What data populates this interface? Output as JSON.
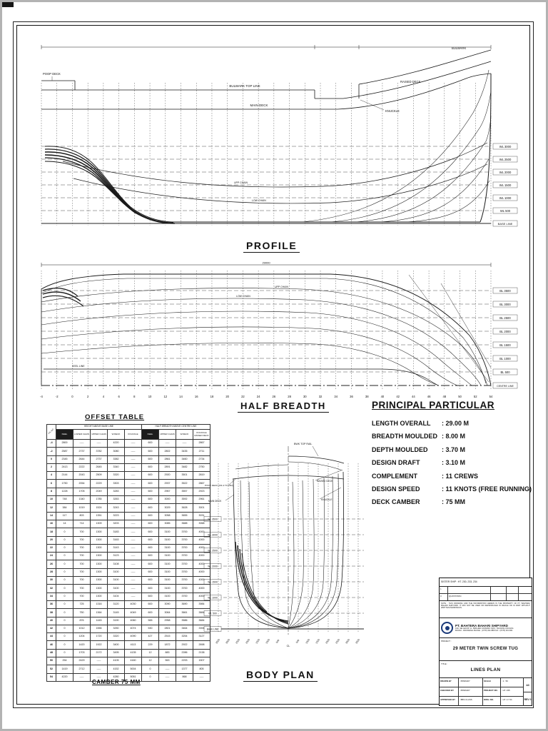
{
  "views": {
    "profile": {
      "title": "PROFILE",
      "labels": {
        "bulwark_top_line": "BULWARK TOP LINE",
        "main_deck": "MAIN DECK",
        "poop_deck": "POOP DECK",
        "raised_deck": "RAISED DECK",
        "bulwark": "BULWARK",
        "knuckle": "KNUCKLE",
        "upp_chain": "UPP CHAIN",
        "low_chain": "LOW CHAIN",
        "base_line": "BASE LINE"
      },
      "waterline_labels": [
        "WL 3000",
        "WL 2500",
        "WL 2000",
        "WL 1500",
        "WL 1000",
        "WL 500"
      ]
    },
    "half_breadth": {
      "title": "HALF BREADTH",
      "labels": {
        "upp_chain": "UPP CHAIN",
        "low_chain": "LOW CHAIN",
        "keel_line": "KEEL LINE",
        "centre_line": "CENTRE LINE",
        "length_dim": "29000"
      },
      "buttock_labels": [
        "BL 3500",
        "BL 3000",
        "BL 2500",
        "BL 2000",
        "BL 1500",
        "BL 1000",
        "BL 500"
      ],
      "station_numbers": [
        "-4",
        "-2",
        "0",
        "2",
        "4",
        "6",
        "8",
        "10",
        "12",
        "14",
        "16",
        "18",
        "20",
        "22",
        "24",
        "26",
        "28",
        "30",
        "32",
        "34",
        "36",
        "38",
        "40",
        "42",
        "44",
        "46",
        "48",
        "50",
        "52",
        "54"
      ]
    },
    "body_plan": {
      "title": "BODY PLAN",
      "labels": {
        "bwk_top_rail": "BWK TOP RAIL",
        "poop_deck": "POOP DECK (FR-4 TO FR2)",
        "main_deck": "MAIN DECK",
        "raised_deck": "RAISED DECK",
        "knuckle": "KNUCKLE",
        "base_line": "BASE LINE",
        "centre_line": "CL"
      },
      "waterline_labels": [
        "WL 3500",
        "WL 3000",
        "WL 2500",
        "WL 2000",
        "WL 1500",
        "WL 1000",
        "WL 500"
      ],
      "buttock_offsets": [
        "3500",
        "3000",
        "2500",
        "2000",
        "1500",
        "1000",
        "500"
      ]
    }
  },
  "principal_particular": {
    "title": "PRINCIPAL PARTICULAR",
    "items": [
      {
        "label": "LENGTH OVERALL",
        "value": ": 29.00 M"
      },
      {
        "label": "BREADTH MOULDED",
        "value": ": 8.00 M"
      },
      {
        "label": "DEPTH MOULDED",
        "value": ": 3.70 M"
      },
      {
        "label": "DESIGN DRAFT",
        "value": ": 3.10 M"
      },
      {
        "label": "COMPLEMENT",
        "value": ": 11 CREWS"
      },
      {
        "label": "DESIGN SPEED",
        "value": ": 11 KNOTS (FREE RUNNING)"
      },
      {
        "label": "DECK CAMBER",
        "value": ": 75 MM"
      }
    ]
  },
  "offset_table": {
    "title": "OFFSET TABLE",
    "footer": "CAMBER 75 MM",
    "corner_header": "FR. NO",
    "group_headers": [
      "HEIGHT ABOVE BASE LINE",
      "HALF BREADTH ABOVE CENTRE LINE"
    ],
    "col_headers_height": [
      "KEEL",
      "LOWER CHAIN",
      "UPPER CHAIN",
      "W.DECK",
      "KNUCKLE"
    ],
    "col_headers_breadth": [
      "KEEL",
      "UPPER CHAIN",
      "W.DECK",
      "KNUCKLE RAISED DECK"
    ],
    "rows": [
      [
        "-4",
        "2800",
        "-----",
        "-----",
        "4220",
        "-----",
        "600",
        "-----",
        "-----",
        "2867"
      ],
      [
        "-2",
        "2587",
        "2737",
        "3782",
        "3080",
        "-----",
        "600",
        "2802",
        "3435",
        "2711"
      ],
      [
        "0",
        "2345",
        "2644",
        "2737",
        "3382",
        "-----",
        "600",
        "2861",
        "3460",
        "2734"
      ],
      [
        "2",
        "2413",
        "2222",
        "2645",
        "3340",
        "-----",
        "600",
        "2891",
        "3482",
        "2750"
      ],
      [
        "4",
        "2144",
        "2043",
        "2509",
        "3320",
        "-----",
        "600",
        "2920",
        "3501",
        "2819"
      ],
      [
        "6",
        "1750",
        "2054",
        "2229",
        "3303",
        "-----",
        "600",
        "2937",
        "3522",
        "2867"
      ],
      [
        "8",
        "1228",
        "1705",
        "2049",
        "3283",
        "-----",
        "600",
        "2967",
        "3557",
        "2923"
      ],
      [
        "10",
        "748",
        "1340",
        "1785",
        "3263",
        "-----",
        "600",
        "3000",
        "3592",
        "2961"
      ],
      [
        "12",
        "384",
        "1019",
        "1524",
        "3243",
        "-----",
        "600",
        "3029",
        "3628",
        "3001"
      ],
      [
        "14",
        "117",
        "803",
        "1351",
        "3223",
        "-----",
        "600",
        "3058",
        "3655",
        "3031"
      ],
      [
        "16",
        "14",
        "714",
        "1309",
        "3203",
        "-----",
        "600",
        "3085",
        "3688",
        "3068"
      ],
      [
        "18",
        "0",
        "700",
        "1300",
        "3183",
        "-----",
        "600",
        "3100",
        "3700",
        "4000"
      ],
      [
        "20",
        "0",
        "700",
        "1300",
        "3163",
        "-----",
        "600",
        "3100",
        "3700",
        "4000"
      ],
      [
        "22",
        "0",
        "700",
        "1300",
        "3143",
        "-----",
        "600",
        "3100",
        "3700",
        "4000"
      ],
      [
        "24",
        "0",
        "700",
        "1300",
        "3123",
        "-----",
        "600",
        "3100",
        "3700",
        "4000"
      ],
      [
        "26",
        "0",
        "700",
        "1300",
        "3108",
        "-----",
        "600",
        "3100",
        "3700",
        "4000"
      ],
      [
        "28",
        "0",
        "700",
        "1300",
        "3100",
        "-----",
        "600",
        "3100",
        "3700",
        "4000"
      ],
      [
        "30",
        "0",
        "700",
        "1300",
        "3100",
        "-----",
        "600",
        "3100",
        "3700",
        "4000"
      ],
      [
        "32",
        "0",
        "700",
        "1300",
        "3100",
        "-----",
        "600",
        "3100",
        "3700",
        "4000"
      ],
      [
        "34",
        "0",
        "700",
        "1300",
        "3104",
        "-----",
        "600",
        "3100",
        "3700",
        "4000"
      ],
      [
        "36",
        "0",
        "725",
        "1316",
        "3120",
        "4030",
        "600",
        "3090",
        "3690",
        "3984"
      ],
      [
        "38",
        "0",
        "750",
        "1364",
        "3145",
        "4049",
        "600",
        "3064",
        "3661",
        "3884"
      ],
      [
        "40",
        "0",
        "876",
        "1445",
        "3190",
        "4060",
        "565",
        "2958",
        "3586",
        "3684"
      ],
      [
        "42",
        "0",
        "1012",
        "1556",
        "3250",
        "4074",
        "530",
        "2801",
        "3464",
        "3394"
      ],
      [
        "44",
        "0",
        "1204",
        "1720",
        "3320",
        "4090",
        "427",
        "2515",
        "3254",
        "3127"
      ],
      [
        "46",
        "0",
        "1420",
        "1922",
        "3400",
        "4113",
        "229",
        "1872",
        "2922",
        "2698"
      ],
      [
        "48",
        "0",
        "1703",
        "2172",
        "3495",
        "4135",
        "12",
        "883",
        "2286",
        "2138"
      ],
      [
        "50",
        "254",
        "2429",
        "-----",
        "4105",
        "4160",
        "12",
        "563",
        "2293",
        "1507"
      ],
      [
        "52",
        "1419",
        "2712",
        "-----",
        "4152",
        "5004",
        "0",
        "-----",
        "1377",
        "805"
      ],
      [
        "54",
        "4220",
        "-----",
        "-----",
        "4280",
        "5051",
        "0",
        "-----",
        "868",
        "-----"
      ]
    ]
  },
  "title_block": {
    "sister_ship": "SISTER SHIP : HT. 230, 233, 234",
    "rev_rows": [
      [
        "1",
        "",
        "",
        "",
        ""
      ],
      [
        "0",
        "QUOTATION",
        "",
        "",
        ""
      ]
    ],
    "notes": "NOTE : THIS DRAWING AND THE INFORMATION HEREIN IS THE PROPERTY OF PT. BAHTERA BAHARI SHIPYARD. IT MAY NOT BE USED OR REPRODUCED IN WHOLE OR IN PART WITHOUT WRITTEN PERMISSION.",
    "company": {
      "name": "PT. BAHTERA BAHARI SHIPYARD",
      "address1": "KAV. SEI LEKOP, JL. BRIGJEN KATAMSO KM.6, TANJUNG UNCANG",
      "address2": "BATAM - INDONESIA   PHONE : (0778) 391 888   FAX : (0778) 391 999"
    },
    "project_label": "PROJECT :",
    "project": "29 METER TWIN SCREW TUG",
    "title_label": "TITLE :",
    "title": "LINES PLAN",
    "fields_rows": [
      [
        "DRAWN BY",
        ": PRIMADY",
        "SCALE",
        ": 1 : 50"
      ],
      [
        "CHECKED BY",
        ": PRIMADY",
        "PROJECT NO.",
        ": HT. 235"
      ],
      [
        "APPROVED BY",
        ": BBS CLASS",
        "DWG. NO.",
        ": HT. 2.7.01"
      ]
    ],
    "size": "A3",
    "rev_label": "REV",
    "rev": "0"
  }
}
